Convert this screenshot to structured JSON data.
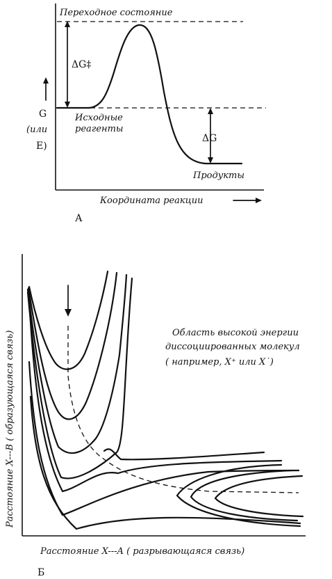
{
  "panel_a": {
    "transition_state": "Переходное состояние",
    "delta_g_activation": "ΔG‡",
    "y_label_g": "G",
    "y_label_or": "(или",
    "y_label_e": "E)",
    "reactants_line1": "Исходные",
    "reactants_line2": "реагенты",
    "delta_g": "ΔG",
    "products": "Продукты",
    "x_label": "Координата реакции",
    "panel_letter": "А"
  },
  "panel_b": {
    "region_line1": "Область высокой энергии",
    "region_line2": "диссоциированных молекул",
    "region_line3": "( например, X⁺ или X˙)",
    "y_label": "Расстояние  X---B ( образующаяся связь)",
    "x_label": "Расстояние  X---A ( разрывающаяся связь)",
    "panel_letter": "Б"
  }
}
